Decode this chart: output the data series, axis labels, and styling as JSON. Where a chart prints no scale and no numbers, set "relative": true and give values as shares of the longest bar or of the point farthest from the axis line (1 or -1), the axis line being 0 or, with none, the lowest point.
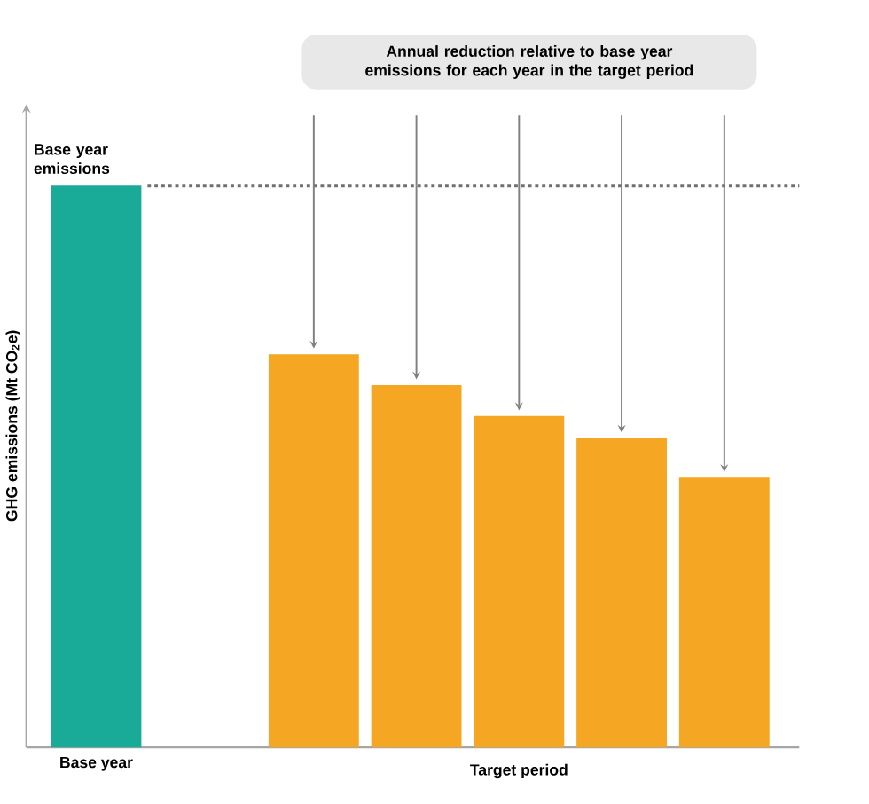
{
  "chart_data": {
    "type": "bar",
    "relative": true,
    "ylabel": "GHG emissions (Mt CO$_{2}$e)",
    "categories": [
      "Base year",
      null,
      null,
      null,
      null,
      null
    ],
    "values": [
      1,
      0.7,
      0.645,
      0.59,
      0.55,
      0.48
    ],
    "colors": [
      "#1aab98",
      "#f5a623",
      "#f5a623",
      "#f5a623",
      "#f5a623",
      "#f5a623"
    ],
    "ref_lines": [
      {
        "axis": "y",
        "value": 1,
        "color": "#707070",
        "line_style": "dotted"
      }
    ],
    "annotations": [
      {
        "text": "Base year emissions",
        "x": "Base year",
        "y": 1
      },
      "Annual reduction relative to base year emissions for each year in the target period",
      "Target period"
    ]
  }
}
